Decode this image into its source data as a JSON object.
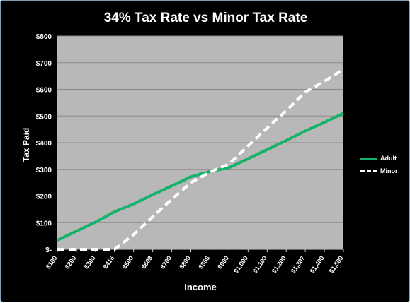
{
  "chart_data": {
    "type": "line",
    "title": "34% Tax Rate vs Minor Tax Rate",
    "xlabel": "Income",
    "ylabel": "Tax Paid",
    "categories": [
      "$100",
      "$200",
      "$300",
      "$416",
      "$500",
      "$603",
      "$700",
      "$800",
      "$858",
      "$900",
      "$1,000",
      "$1,100",
      "$1,200",
      "$1,307",
      "$1,400",
      "$1,500"
    ],
    "ylim": [
      0,
      800
    ],
    "yticks": [
      0,
      100,
      200,
      300,
      400,
      500,
      600,
      700,
      800
    ],
    "ytick_labels": [
      "$-",
      "$100",
      "$200",
      "$300",
      "$400",
      "$500",
      "$600",
      "$700",
      "$800"
    ],
    "grid": true,
    "legend": "right",
    "series": [
      {
        "name": "Adult",
        "color": "#14b26a",
        "style": "solid",
        "values": [
          34,
          68,
          102,
          141,
          170,
          205,
          238,
          272,
          292,
          306,
          340,
          374,
          408,
          444,
          476,
          510
        ]
      },
      {
        "name": "Minor",
        "color": "#ffffff",
        "style": "dashed",
        "values": [
          0,
          0,
          0,
          0,
          55,
          122,
          188,
          250,
          290,
          320,
          388,
          455,
          520,
          590,
          630,
          675
        ]
      }
    ]
  }
}
